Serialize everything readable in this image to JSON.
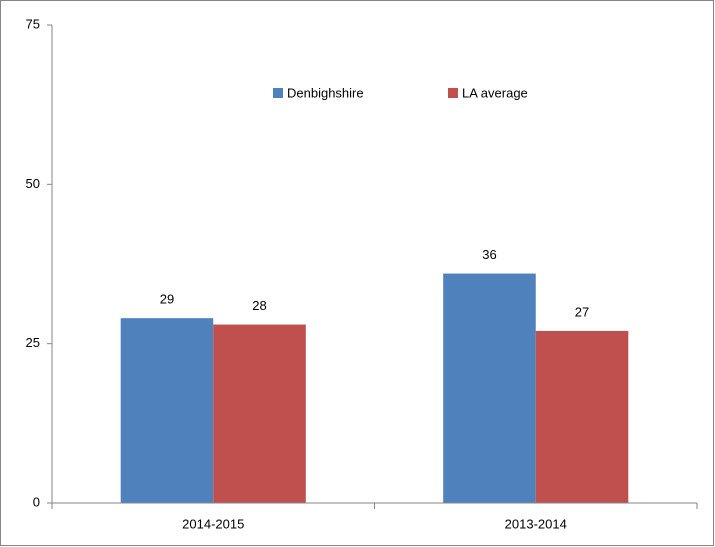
{
  "chart_data": {
    "type": "bar",
    "categories": [
      "2014-2015",
      "2013-2014"
    ],
    "series": [
      {
        "name": "Denbighshire",
        "color": "#4f81bd",
        "values": [
          29,
          36
        ]
      },
      {
        "name": "LA average",
        "color": "#c0504d",
        "values": [
          28,
          27
        ]
      }
    ],
    "ylim": [
      0,
      75
    ],
    "yticks": [
      0,
      25,
      50,
      75
    ],
    "grid": false,
    "legend": "top"
  }
}
